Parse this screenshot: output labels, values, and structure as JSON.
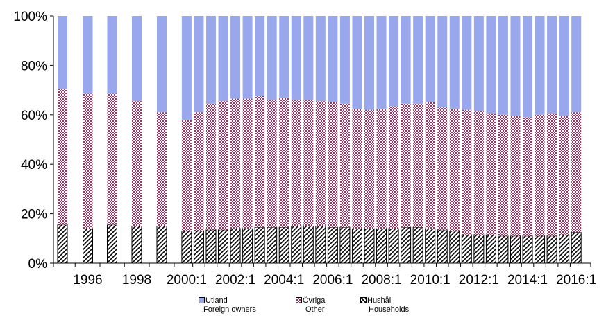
{
  "chart_data": {
    "type": "bar",
    "stacked": true,
    "normalized": true,
    "categories": [
      "1995",
      "1996",
      "1997",
      "1998",
      "1999",
      "2000:1",
      "2000:2",
      "2001:1",
      "2001:2",
      "2002:1",
      "2002:2",
      "2003:1",
      "2003:2",
      "2004:1",
      "2004:2",
      "2005:1",
      "2005:2",
      "2006:1",
      "2006:2",
      "2007:1",
      "2007:2",
      "2008:1",
      "2008:2",
      "2009:1",
      "2009:2",
      "2010:1",
      "2010:2",
      "2011:1",
      "2011:2",
      "2012:1",
      "2012:2",
      "2013:1",
      "2013:2",
      "2014:1",
      "2014:2",
      "2015:1",
      "2015:2",
      "2016:1"
    ],
    "x_tick_labels": [
      "1996",
      "1998",
      "2000:1",
      "2002:1",
      "2004:1",
      "2006:1",
      "2008:1",
      "2010:1",
      "2012:1",
      "2014:1",
      "2016:1"
    ],
    "y_tick_labels": [
      "0%",
      "20%",
      "40%",
      "60%",
      "80%",
      "100%"
    ],
    "ylim": [
      0,
      100
    ],
    "series": [
      {
        "name": "Hushåll",
        "subtitle": "Households",
        "color": "#000000",
        "pattern": "diagonal-hatch",
        "values": [
          15.5,
          14,
          15.5,
          15,
          15,
          13,
          13,
          13.5,
          13.5,
          14,
          14,
          14.5,
          14.5,
          14.5,
          15,
          15,
          15,
          14.5,
          14.5,
          14,
          14,
          14,
          14,
          14.5,
          14.5,
          14,
          13.5,
          13,
          11.5,
          11.5,
          11.5,
          11,
          11,
          11,
          11,
          11,
          11.5,
          12.5
        ]
      },
      {
        "name": "Övriga",
        "subtitle": "Other",
        "color": "#993366",
        "pattern": "checker",
        "values": [
          55,
          54.5,
          53,
          50.5,
          46,
          45,
          48,
          51,
          52,
          52.5,
          52.5,
          53,
          51.5,
          52.5,
          51,
          51,
          50.5,
          50.5,
          50,
          48.5,
          48,
          48.5,
          49.5,
          50,
          50,
          51,
          49.5,
          49.5,
          50.5,
          50,
          49,
          49,
          48.5,
          48,
          49,
          49.5,
          48,
          48.5
        ]
      },
      {
        "name": "Utland",
        "subtitle": "Foreign owners",
        "color": "#99a8ec",
        "pattern": "solid",
        "values": [
          29.5,
          31.5,
          31.5,
          34.5,
          39,
          42,
          39,
          35.5,
          34.5,
          33.5,
          33.5,
          32.5,
          34,
          33,
          34,
          34,
          34.5,
          35,
          35.5,
          37.5,
          38,
          37.5,
          36.5,
          35.5,
          35.5,
          35,
          37,
          37.5,
          38,
          38.5,
          39.5,
          40,
          40.5,
          41,
          40,
          39.5,
          40.5,
          39
        ]
      }
    ],
    "grid": false,
    "legend_position": "bottom",
    "title": "",
    "xlabel": "",
    "ylabel": ""
  }
}
